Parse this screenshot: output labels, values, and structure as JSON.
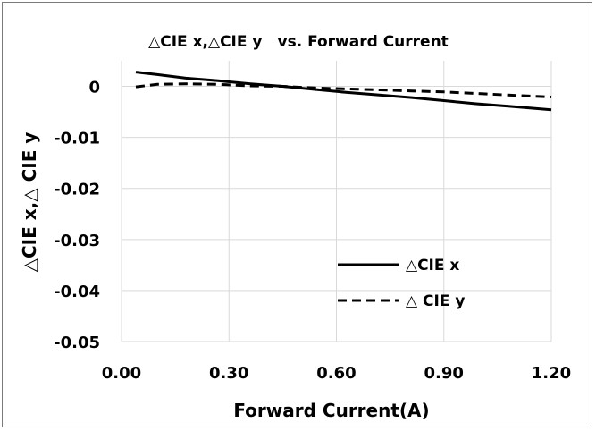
{
  "chart_data": {
    "type": "line",
    "title": "△CIE x,△CIE y　vs. Forward Current",
    "xlabel": "Forward Current(A)",
    "ylabel": "△CIE x,△ CIE y",
    "xlim": [
      0.0,
      1.2
    ],
    "ylim": [
      -0.05,
      0.005
    ],
    "x_ticks": [
      "0.00",
      "0.30",
      "0.60",
      "0.90",
      "1.20"
    ],
    "y_ticks": [
      "0",
      "-0.01",
      "-0.02",
      "-0.03",
      "-0.04",
      "-0.05"
    ],
    "grid": true,
    "legend_position": "bottom-right",
    "series": [
      {
        "name": "△CIE x",
        "style": "solid",
        "color": "#000000",
        "x": [
          0.04,
          0.1,
          0.18,
          0.27,
          0.36,
          0.45,
          0.54,
          0.63,
          0.72,
          0.81,
          0.9,
          0.99,
          1.08,
          1.2
        ],
        "y": [
          0.0028,
          0.0023,
          0.0016,
          0.0011,
          0.0005,
          0.0,
          -0.0006,
          -0.0012,
          -0.0017,
          -0.0022,
          -0.0028,
          -0.0034,
          -0.0039,
          -0.0046
        ]
      },
      {
        "name": "△ CIE y",
        "style": "dashed",
        "color": "#000000",
        "x": [
          0.04,
          0.1,
          0.18,
          0.27,
          0.36,
          0.45,
          0.54,
          0.63,
          0.72,
          0.81,
          0.9,
          0.99,
          1.08,
          1.2
        ],
        "y": [
          -0.0001,
          0.0004,
          0.0005,
          0.0004,
          0.0001,
          0.0,
          -0.0003,
          -0.0005,
          -0.0007,
          -0.0009,
          -0.0011,
          -0.0014,
          -0.0017,
          -0.0021
        ]
      }
    ]
  }
}
